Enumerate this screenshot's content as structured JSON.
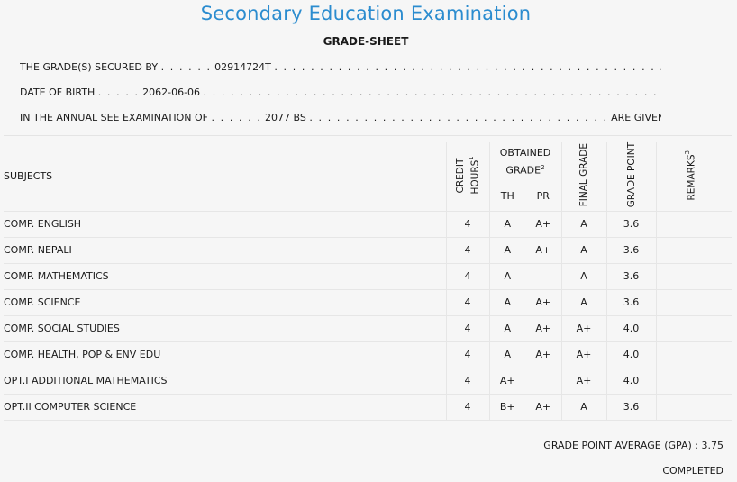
{
  "header": {
    "title": "Secondary Education Examination",
    "subtitle": "GRADE-SHEET"
  },
  "info": {
    "grade_secured_by_label": "THE GRADE(S) SECURED BY",
    "symbol_number": "02914724T",
    "dob_label": "DATE OF BIRTH",
    "dob": "2062-06-06",
    "exam_label": "IN THE ANNUAL SEE EXAMINATION OF",
    "exam_year": "2077 BS",
    "given_below": "ARE GIVEN BELOW",
    "dots_short": ". . . . . .",
    "dots_dob": ". . . . .",
    "dots_long": ". . . . . . . . . . . . . . . . . . . . . . . . . . . . . . . . . . . . . . . . . . . . . . . . . . . . . . . . . . . . . . . . . . . . .",
    "dots_mid": ". . . . . . . . . . . . . . . . . . . . . . . . . . . . . . . . .",
    "dots_tail": ". . ."
  },
  "table": {
    "headers": {
      "subjects": "SUBJECTS",
      "credit_hours": "CREDIT HOURS",
      "credit_hours_sup": "1",
      "obtained_grade": "OBTAINED GRADE",
      "obtained_grade_sup": "2",
      "th": "TH",
      "pr": "PR",
      "final_grade": "FINAL GRADE",
      "grade_point": "GRADE POINT",
      "remarks": "REMARKS",
      "remarks_sup": "3"
    },
    "rows": [
      {
        "subject": "COMP. ENGLISH",
        "credit": "4",
        "th": "A",
        "pr": "A+",
        "final": "A",
        "gp": "3.6",
        "remarks": ""
      },
      {
        "subject": "COMP. NEPALI",
        "credit": "4",
        "th": "A",
        "pr": "A+",
        "final": "A",
        "gp": "3.6",
        "remarks": ""
      },
      {
        "subject": "COMP. MATHEMATICS",
        "credit": "4",
        "th": "A",
        "pr": "",
        "final": "A",
        "gp": "3.6",
        "remarks": ""
      },
      {
        "subject": "COMP. SCIENCE",
        "credit": "4",
        "th": "A",
        "pr": "A+",
        "final": "A",
        "gp": "3.6",
        "remarks": ""
      },
      {
        "subject": "COMP. SOCIAL STUDIES",
        "credit": "4",
        "th": "A",
        "pr": "A+",
        "final": "A+",
        "gp": "4.0",
        "remarks": ""
      },
      {
        "subject": "COMP. HEALTH, POP & ENV EDU",
        "credit": "4",
        "th": "A",
        "pr": "A+",
        "final": "A+",
        "gp": "4.0",
        "remarks": ""
      },
      {
        "subject": "OPT.I ADDITIONAL MATHEMATICS",
        "credit": "4",
        "th": "A+",
        "pr": "",
        "final": "A+",
        "gp": "4.0",
        "remarks": ""
      },
      {
        "subject": "OPT.II COMPUTER SCIENCE",
        "credit": "4",
        "th": "B+",
        "pr": "A+",
        "final": "A",
        "gp": "3.6",
        "remarks": ""
      }
    ]
  },
  "footer": {
    "gpa_label": "GRADE POINT AVERAGE (GPA) :",
    "gpa_value": "3.75",
    "status": "COMPLETED"
  },
  "colors": {
    "title": "#2b8ccf",
    "background": "#f6f6f6",
    "rule": "#e6e6e6"
  }
}
